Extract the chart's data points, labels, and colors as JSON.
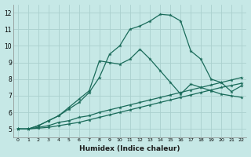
{
  "xlabel": "Humidex (Indice chaleur)",
  "ylabel": "",
  "xlim": [
    -0.5,
    22.5
  ],
  "ylim": [
    4.5,
    12.5
  ],
  "yticks": [
    5,
    6,
    7,
    8,
    9,
    10,
    11,
    12
  ],
  "xticks": [
    0,
    1,
    2,
    3,
    4,
    5,
    6,
    7,
    8,
    9,
    10,
    11,
    12,
    13,
    14,
    15,
    16,
    17,
    18,
    19,
    20,
    21,
    22
  ],
  "bg_color": "#c6e8e6",
  "grid_color": "#aad0ce",
  "line_color": "#1a6b5a",
  "series": [
    {
      "x": [
        0,
        1,
        2,
        3,
        4,
        5,
        6,
        7,
        8,
        9,
        10,
        11,
        12,
        13,
        14,
        15,
        16,
        17,
        18,
        19,
        20,
        21,
        22
      ],
      "y": [
        5.0,
        5.0,
        5.2,
        5.5,
        5.8,
        6.2,
        6.6,
        7.2,
        8.1,
        9.5,
        10.0,
        11.0,
        11.2,
        11.5,
        11.9,
        11.85,
        11.5,
        9.7,
        9.2,
        8.0,
        7.8,
        7.25,
        7.6
      ]
    },
    {
      "x": [
        0,
        1,
        2,
        3,
        4,
        5,
        6,
        7,
        8,
        9,
        10,
        11,
        12,
        13,
        14,
        15,
        16,
        17,
        18,
        19,
        20,
        21,
        22
      ],
      "y": [
        5.0,
        5.0,
        5.2,
        5.5,
        5.8,
        6.3,
        6.8,
        7.3,
        9.1,
        9.0,
        8.9,
        9.2,
        9.8,
        9.2,
        8.5,
        7.8,
        7.1,
        7.7,
        7.5,
        7.3,
        7.1,
        7.0,
        6.9
      ]
    },
    {
      "x": [
        0,
        1,
        2,
        3,
        4,
        5,
        6,
        7,
        8,
        9,
        10,
        11,
        12,
        13,
        14,
        15,
        16,
        17,
        18,
        19,
        20,
        21,
        22
      ],
      "y": [
        5.0,
        5.0,
        5.1,
        5.2,
        5.4,
        5.5,
        5.7,
        5.8,
        6.0,
        6.15,
        6.3,
        6.45,
        6.6,
        6.75,
        6.9,
        7.05,
        7.2,
        7.35,
        7.5,
        7.65,
        7.8,
        7.95,
        8.1
      ]
    },
    {
      "x": [
        0,
        1,
        2,
        3,
        4,
        5,
        6,
        7,
        8,
        9,
        10,
        11,
        12,
        13,
        14,
        15,
        16,
        17,
        18,
        19,
        20,
        21,
        22
      ],
      "y": [
        5.0,
        5.0,
        5.05,
        5.1,
        5.2,
        5.3,
        5.4,
        5.55,
        5.7,
        5.85,
        6.0,
        6.15,
        6.3,
        6.45,
        6.6,
        6.75,
        6.9,
        7.05,
        7.2,
        7.35,
        7.5,
        7.62,
        7.75
      ]
    }
  ]
}
